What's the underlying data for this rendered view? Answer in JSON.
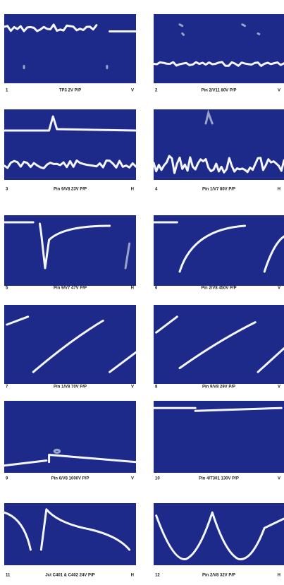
{
  "panels": [
    {
      "number": "1",
      "label": "TP3  2V P/P",
      "mode": "V"
    },
    {
      "number": "2",
      "label": "Pin 2/V11  80V P/P",
      "mode": "V"
    },
    {
      "number": "3",
      "label": "Pin 9/V8  23V P/P",
      "mode": "H"
    },
    {
      "number": "4",
      "label": "Pin 1/V7  80V P/P",
      "mode": "H"
    },
    {
      "number": "5",
      "label": "Pin 9/V7  47V P/P",
      "mode": "H"
    },
    {
      "number": "6",
      "label": "Pin 2/V8  450V P/P",
      "mode": "V"
    },
    {
      "number": "7",
      "label": "Pin 1/V8  70V P/P",
      "mode": "V"
    },
    {
      "number": "8",
      "label": "Pin 9/V8  29V P/P",
      "mode": "V"
    },
    {
      "number": "9",
      "label": "Pin 6/V8  1000V P/P",
      "mode": "V"
    },
    {
      "number": "10",
      "label": "Pin 4/T301  130V P/P",
      "mode": "V"
    },
    {
      "number": "11",
      "label": "Jct C401 & C402  24V P/P",
      "mode": "H"
    },
    {
      "number": "12",
      "label": "Pin 2/V8  32V P/P",
      "mode": "H"
    }
  ]
}
